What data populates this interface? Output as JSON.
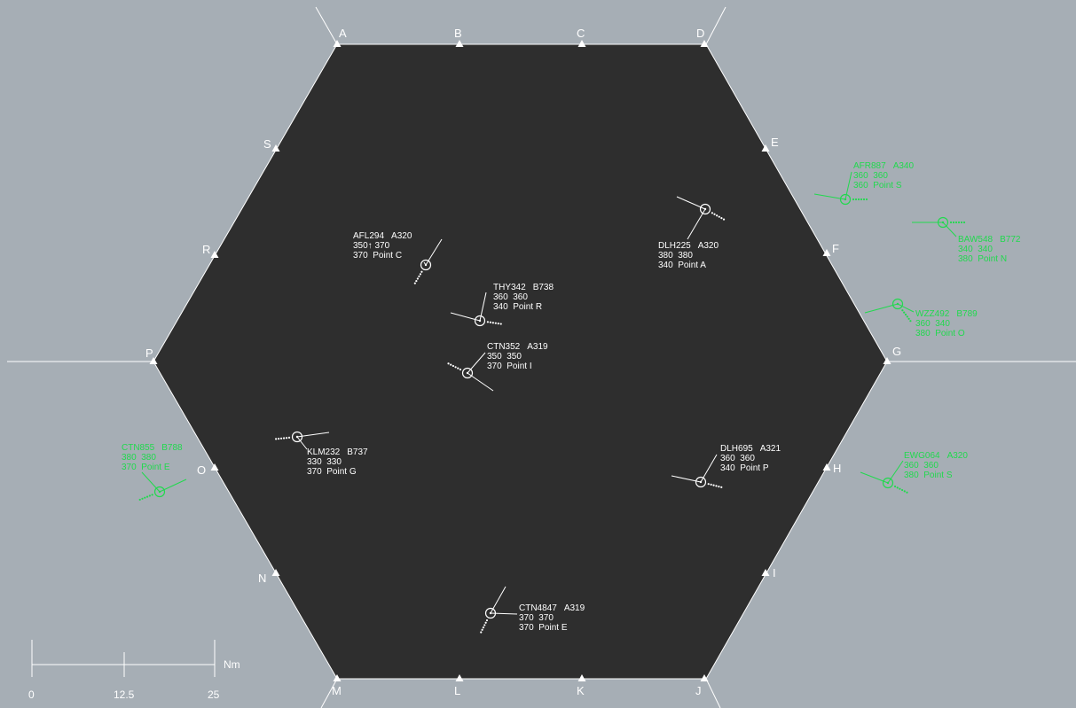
{
  "colors": {
    "outside_sector": "#a6aeb5",
    "sector": "#2e2e2e",
    "sector_border": "#ffffff",
    "own_traffic": "#ffffff",
    "other_traffic": "#21d94e"
  },
  "fixes": [
    {
      "id": "A",
      "icon": "triangle-icon"
    },
    {
      "id": "B",
      "icon": "triangle-icon"
    },
    {
      "id": "C",
      "icon": "triangle-icon"
    },
    {
      "id": "D",
      "icon": "triangle-icon"
    },
    {
      "id": "E",
      "icon": "triangle-icon"
    },
    {
      "id": "F",
      "icon": "triangle-icon"
    },
    {
      "id": "G",
      "icon": "triangle-icon"
    },
    {
      "id": "H",
      "icon": "triangle-icon"
    },
    {
      "id": "I",
      "icon": "triangle-icon"
    },
    {
      "id": "J",
      "icon": "triangle-icon"
    },
    {
      "id": "K",
      "icon": "triangle-icon"
    },
    {
      "id": "L",
      "icon": "triangle-icon"
    },
    {
      "id": "M",
      "icon": "triangle-icon"
    },
    {
      "id": "N",
      "icon": "triangle-icon"
    },
    {
      "id": "O",
      "icon": "triangle-icon"
    },
    {
      "id": "P",
      "icon": "triangle-icon"
    },
    {
      "id": "R",
      "icon": "triangle-icon"
    },
    {
      "id": "S",
      "icon": "triangle-icon"
    }
  ],
  "aircraft": [
    {
      "callsign": "AFL294",
      "type": "A320",
      "line2": "350↑ 370",
      "line3": "370  Point C",
      "controlled": true
    },
    {
      "callsign": "THY342",
      "type": "B738",
      "line2": "360  360",
      "line3": "340  Point R",
      "controlled": true
    },
    {
      "callsign": "DLH225",
      "type": "A320",
      "line2": "380  380",
      "line3": "340  Point A",
      "controlled": true
    },
    {
      "callsign": "CTN352",
      "type": "A319",
      "line2": "350  350",
      "line3": "370  Point I",
      "controlled": true
    },
    {
      "callsign": "KLM232",
      "type": "B737",
      "line2": "330  330",
      "line3": "370  Point G",
      "controlled": true
    },
    {
      "callsign": "DLH695",
      "type": "A321",
      "line2": "360  360",
      "line3": "340  Point P",
      "controlled": true
    },
    {
      "callsign": "CTN4847",
      "type": "A319",
      "line2": "370  370",
      "line3": "370  Point E",
      "controlled": true
    },
    {
      "callsign": "AFR887",
      "type": "A340",
      "line2": "360  360",
      "line3": "360  Point S",
      "controlled": false
    },
    {
      "callsign": "BAW548",
      "type": "B772",
      "line2": "340  340",
      "line3": "380  Point N",
      "controlled": false
    },
    {
      "callsign": "WZZ492",
      "type": "B789",
      "line2": "360  340",
      "line3": "380  Point O",
      "controlled": false
    },
    {
      "callsign": "EWG064",
      "type": "A320",
      "line2": "360  360",
      "line3": "380  Point S",
      "controlled": false
    },
    {
      "callsign": "CTN855",
      "type": "B788",
      "line2": "380  380",
      "line3": "370  Point E",
      "controlled": false
    }
  ],
  "scale": {
    "ticks": [
      "0",
      "12.5",
      "25"
    ],
    "unit": "Nm"
  }
}
